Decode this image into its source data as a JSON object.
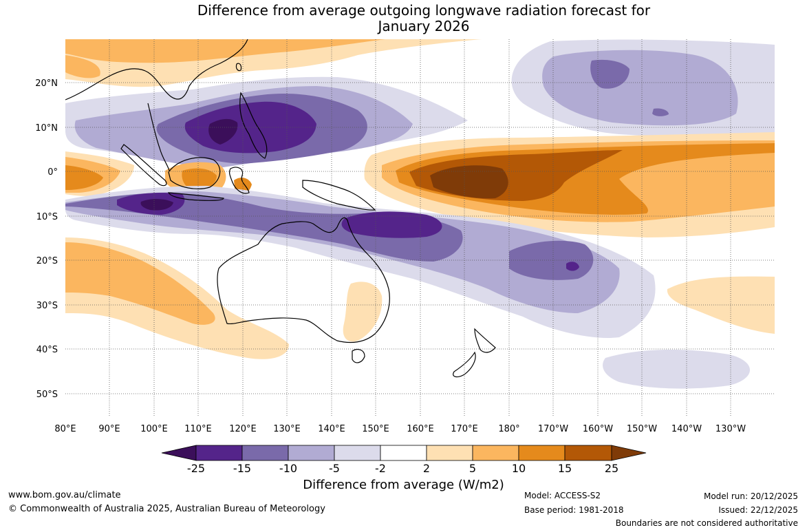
{
  "title": {
    "line1": "Difference from average outgoing longwave radiation forecast for",
    "line2": "January 2026"
  },
  "map": {
    "lat_labels": [
      "20°N",
      "10°N",
      "0°",
      "10°S",
      "20°S",
      "30°S",
      "40°S",
      "50°S"
    ],
    "lon_labels": [
      "80°E",
      "90°E",
      "100°E",
      "110°E",
      "120°E",
      "130°E",
      "140°E",
      "150°E",
      "160°E",
      "170°E",
      "180°",
      "170°W",
      "160°W",
      "150°W",
      "140°W",
      "130°W"
    ],
    "colors": {
      "neg25": "#3b0f5a",
      "neg15": "#54248a",
      "neg10": "#7a6aaa",
      "neg5": "#b1abd3",
      "neg2": "#dcdbeb",
      "zero": "#ffffff",
      "pos2": "#fee0b3",
      "pos5": "#fbb65f",
      "pos10": "#e58a1c",
      "pos15": "#b35806",
      "pos25": "#7f3b08"
    }
  },
  "colorbar": {
    "ticks": [
      "-25",
      "-15",
      "-10",
      "-5",
      "-2",
      "2",
      "5",
      "10",
      "15",
      "25"
    ],
    "colors": [
      "#3b0f5a",
      "#54248a",
      "#7a6aaa",
      "#b1abd3",
      "#dcdbeb",
      "#ffffff",
      "#fee0b3",
      "#fbb65f",
      "#e58a1c",
      "#b35806",
      "#7f3b08"
    ],
    "label": "Difference from average (W/m2)"
  },
  "footer": {
    "url": "www.bom.gov.au/climate",
    "copyright": "© Commonwealth of Australia 2025, Australian Bureau of Meteorology",
    "model": "Model: ACCESS-S2",
    "base_period": "Base period: 1981-2018",
    "model_run": "Model run: 20/12/2025",
    "issued": "Issued: 22/12/2025",
    "disclaimer": "Boundaries are not considered authoritative"
  }
}
